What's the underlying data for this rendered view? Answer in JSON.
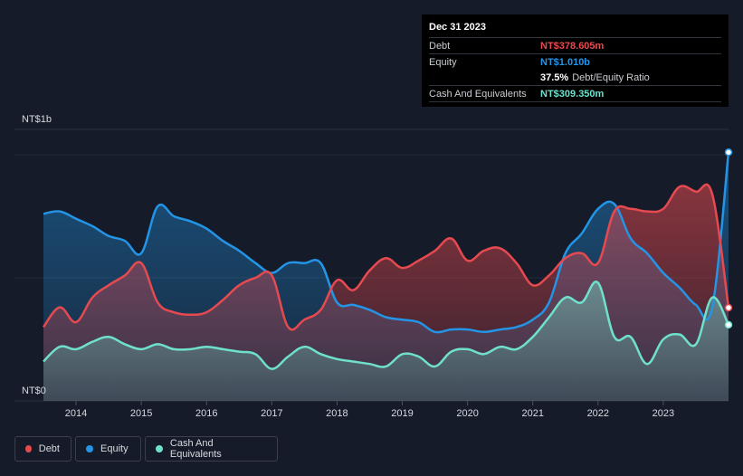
{
  "colors": {
    "debt": "#e64a50",
    "equity": "#2394e6",
    "cash": "#6fe0cc",
    "background": "#151b28",
    "grid": "#2a303c",
    "axis_text": "#d7dae0"
  },
  "tooltip": {
    "date": "Dec 31 2023",
    "debt_label": "Debt",
    "debt_value": "NT$378.605m",
    "equity_label": "Equity",
    "equity_value": "NT$1.010b",
    "ratio_value": "37.5%",
    "ratio_label": "Debt/Equity Ratio",
    "cash_label": "Cash And Equivalents",
    "cash_value": "NT$309.350m"
  },
  "legend": {
    "debt_label": "Debt",
    "equity_label": "Equity",
    "cash_label": "Cash And Equivalents"
  },
  "chart_data": {
    "type": "area",
    "title": "",
    "units": "NT$ millions",
    "y_top_label": "NT$1b",
    "y_bottom_label": "NT$0",
    "ylim": [
      0,
      1100
    ],
    "xlim": [
      2013.5,
      2024.0
    ],
    "x_ticks": [
      2014,
      2015,
      2016,
      2017,
      2018,
      2019,
      2020,
      2021,
      2022,
      2023
    ],
    "series": [
      {
        "name": "Debt",
        "key": "debt",
        "points": [
          [
            2013.5,
            300
          ],
          [
            2013.75,
            380
          ],
          [
            2014.0,
            320
          ],
          [
            2014.25,
            420
          ],
          [
            2014.5,
            470
          ],
          [
            2014.75,
            510
          ],
          [
            2015.0,
            560
          ],
          [
            2015.25,
            400
          ],
          [
            2015.5,
            360
          ],
          [
            2015.75,
            350
          ],
          [
            2016.0,
            360
          ],
          [
            2016.25,
            410
          ],
          [
            2016.5,
            470
          ],
          [
            2016.75,
            500
          ],
          [
            2017.0,
            510
          ],
          [
            2017.25,
            300
          ],
          [
            2017.5,
            330
          ],
          [
            2017.75,
            370
          ],
          [
            2018.0,
            490
          ],
          [
            2018.25,
            450
          ],
          [
            2018.5,
            530
          ],
          [
            2018.75,
            580
          ],
          [
            2019.0,
            540
          ],
          [
            2019.25,
            570
          ],
          [
            2019.5,
            610
          ],
          [
            2019.75,
            660
          ],
          [
            2020.0,
            570
          ],
          [
            2020.25,
            610
          ],
          [
            2020.5,
            620
          ],
          [
            2020.75,
            560
          ],
          [
            2021.0,
            470
          ],
          [
            2021.25,
            510
          ],
          [
            2021.5,
            580
          ],
          [
            2021.75,
            600
          ],
          [
            2022.0,
            560
          ],
          [
            2022.25,
            770
          ],
          [
            2022.5,
            780
          ],
          [
            2022.75,
            770
          ],
          [
            2023.0,
            780
          ],
          [
            2023.25,
            870
          ],
          [
            2023.5,
            850
          ],
          [
            2023.75,
            840
          ],
          [
            2024.0,
            378.605
          ]
        ]
      },
      {
        "name": "Equity",
        "key": "equity",
        "points": [
          [
            2013.5,
            760
          ],
          [
            2013.75,
            770
          ],
          [
            2014.0,
            740
          ],
          [
            2014.25,
            710
          ],
          [
            2014.5,
            670
          ],
          [
            2014.75,
            650
          ],
          [
            2015.0,
            600
          ],
          [
            2015.25,
            790
          ],
          [
            2015.5,
            750
          ],
          [
            2015.75,
            730
          ],
          [
            2016.0,
            700
          ],
          [
            2016.25,
            650
          ],
          [
            2016.5,
            610
          ],
          [
            2016.75,
            560
          ],
          [
            2017.0,
            520
          ],
          [
            2017.25,
            560
          ],
          [
            2017.5,
            560
          ],
          [
            2017.75,
            560
          ],
          [
            2018.0,
            400
          ],
          [
            2018.25,
            390
          ],
          [
            2018.5,
            370
          ],
          [
            2018.75,
            340
          ],
          [
            2019.0,
            330
          ],
          [
            2019.25,
            320
          ],
          [
            2019.5,
            280
          ],
          [
            2019.75,
            290
          ],
          [
            2020.0,
            290
          ],
          [
            2020.25,
            280
          ],
          [
            2020.5,
            290
          ],
          [
            2020.75,
            300
          ],
          [
            2021.0,
            330
          ],
          [
            2021.25,
            400
          ],
          [
            2021.5,
            600
          ],
          [
            2021.75,
            680
          ],
          [
            2022.0,
            780
          ],
          [
            2022.25,
            800
          ],
          [
            2022.5,
            660
          ],
          [
            2022.75,
            600
          ],
          [
            2023.0,
            520
          ],
          [
            2023.25,
            460
          ],
          [
            2023.5,
            390
          ],
          [
            2023.75,
            380
          ],
          [
            2024.0,
            1010
          ]
        ]
      },
      {
        "name": "Cash And Equivalents",
        "key": "cash",
        "points": [
          [
            2013.5,
            160
          ],
          [
            2013.75,
            220
          ],
          [
            2014.0,
            210
          ],
          [
            2014.25,
            240
          ],
          [
            2014.5,
            260
          ],
          [
            2014.75,
            230
          ],
          [
            2015.0,
            210
          ],
          [
            2015.25,
            230
          ],
          [
            2015.5,
            210
          ],
          [
            2015.75,
            210
          ],
          [
            2016.0,
            220
          ],
          [
            2016.25,
            210
          ],
          [
            2016.5,
            200
          ],
          [
            2016.75,
            190
          ],
          [
            2017.0,
            130
          ],
          [
            2017.25,
            180
          ],
          [
            2017.5,
            220
          ],
          [
            2017.75,
            190
          ],
          [
            2018.0,
            170
          ],
          [
            2018.25,
            160
          ],
          [
            2018.5,
            150
          ],
          [
            2018.75,
            140
          ],
          [
            2019.0,
            190
          ],
          [
            2019.25,
            180
          ],
          [
            2019.5,
            140
          ],
          [
            2019.75,
            200
          ],
          [
            2020.0,
            210
          ],
          [
            2020.25,
            190
          ],
          [
            2020.5,
            220
          ],
          [
            2020.75,
            210
          ],
          [
            2021.0,
            260
          ],
          [
            2021.25,
            340
          ],
          [
            2021.5,
            420
          ],
          [
            2021.75,
            400
          ],
          [
            2022.0,
            480
          ],
          [
            2022.25,
            260
          ],
          [
            2022.5,
            260
          ],
          [
            2022.75,
            150
          ],
          [
            2023.0,
            250
          ],
          [
            2023.25,
            270
          ],
          [
            2023.5,
            230
          ],
          [
            2023.75,
            420
          ],
          [
            2024.0,
            309.35
          ]
        ]
      }
    ]
  }
}
